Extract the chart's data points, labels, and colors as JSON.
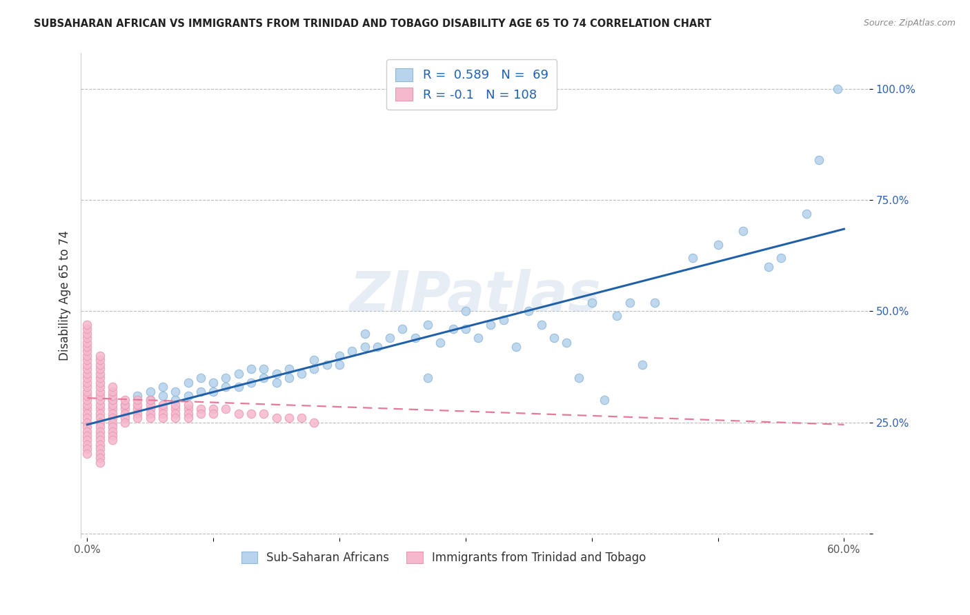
{
  "title": "SUBSAHARAN AFRICAN VS IMMIGRANTS FROM TRINIDAD AND TOBAGO DISABILITY AGE 65 TO 74 CORRELATION CHART",
  "source": "Source: ZipAtlas.com",
  "ylabel": "Disability Age 65 to 74",
  "xlim": [
    -0.005,
    0.62
  ],
  "ylim": [
    -0.01,
    1.08
  ],
  "xticks": [
    0.0,
    0.1,
    0.2,
    0.3,
    0.4,
    0.5,
    0.6
  ],
  "xticklabels": [
    "0.0%",
    "",
    "",
    "",
    "",
    "",
    "60.0%"
  ],
  "yticks": [
    0.0,
    0.25,
    0.5,
    0.75,
    1.0
  ],
  "yticklabels": [
    "",
    "25.0%",
    "50.0%",
    "75.0%",
    "100.0%"
  ],
  "blue_R": 0.589,
  "blue_N": 69,
  "pink_R": -0.1,
  "pink_N": 108,
  "blue_color": "#b8d4ec",
  "pink_color": "#f5b8cd",
  "blue_edge_color": "#90b8d8",
  "pink_edge_color": "#e898b4",
  "blue_line_color": "#2060a8",
  "pink_line_color": "#e87898",
  "watermark": "ZIPatlas",
  "legend_label_blue": "Sub-Saharan Africans",
  "legend_label_pink": "Immigrants from Trinidad and Tobago",
  "blue_scatter_x": [
    0.02,
    0.03,
    0.04,
    0.05,
    0.05,
    0.06,
    0.06,
    0.07,
    0.07,
    0.08,
    0.08,
    0.09,
    0.09,
    0.1,
    0.1,
    0.11,
    0.11,
    0.12,
    0.12,
    0.13,
    0.13,
    0.14,
    0.14,
    0.15,
    0.15,
    0.16,
    0.16,
    0.17,
    0.18,
    0.18,
    0.19,
    0.2,
    0.2,
    0.21,
    0.22,
    0.22,
    0.23,
    0.24,
    0.25,
    0.26,
    0.27,
    0.27,
    0.28,
    0.29,
    0.3,
    0.3,
    0.31,
    0.32,
    0.33,
    0.34,
    0.35,
    0.36,
    0.37,
    0.38,
    0.39,
    0.4,
    0.41,
    0.42,
    0.43,
    0.44,
    0.45,
    0.48,
    0.5,
    0.52,
    0.54,
    0.55,
    0.57,
    0.58,
    0.595
  ],
  "blue_scatter_y": [
    0.3,
    0.29,
    0.31,
    0.3,
    0.32,
    0.31,
    0.33,
    0.3,
    0.32,
    0.31,
    0.34,
    0.32,
    0.35,
    0.32,
    0.34,
    0.33,
    0.35,
    0.33,
    0.36,
    0.34,
    0.37,
    0.35,
    0.37,
    0.34,
    0.36,
    0.35,
    0.37,
    0.36,
    0.37,
    0.39,
    0.38,
    0.38,
    0.4,
    0.41,
    0.42,
    0.45,
    0.42,
    0.44,
    0.46,
    0.44,
    0.47,
    0.35,
    0.43,
    0.46,
    0.46,
    0.5,
    0.44,
    0.47,
    0.48,
    0.42,
    0.5,
    0.47,
    0.44,
    0.43,
    0.35,
    0.52,
    0.3,
    0.49,
    0.52,
    0.38,
    0.52,
    0.62,
    0.65,
    0.68,
    0.6,
    0.62,
    0.72,
    0.84,
    1.0
  ],
  "pink_scatter_x": [
    0.0,
    0.0,
    0.0,
    0.0,
    0.0,
    0.0,
    0.0,
    0.0,
    0.0,
    0.0,
    0.0,
    0.0,
    0.0,
    0.0,
    0.0,
    0.0,
    0.0,
    0.0,
    0.0,
    0.0,
    0.0,
    0.0,
    0.0,
    0.0,
    0.0,
    0.0,
    0.0,
    0.0,
    0.0,
    0.0,
    0.01,
    0.01,
    0.01,
    0.01,
    0.01,
    0.01,
    0.01,
    0.01,
    0.01,
    0.01,
    0.01,
    0.01,
    0.01,
    0.01,
    0.01,
    0.01,
    0.01,
    0.01,
    0.01,
    0.01,
    0.01,
    0.01,
    0.01,
    0.01,
    0.01,
    0.02,
    0.02,
    0.02,
    0.02,
    0.02,
    0.02,
    0.02,
    0.02,
    0.02,
    0.02,
    0.02,
    0.02,
    0.02,
    0.03,
    0.03,
    0.03,
    0.03,
    0.03,
    0.03,
    0.04,
    0.04,
    0.04,
    0.04,
    0.04,
    0.05,
    0.05,
    0.05,
    0.05,
    0.05,
    0.06,
    0.06,
    0.06,
    0.06,
    0.07,
    0.07,
    0.07,
    0.07,
    0.08,
    0.08,
    0.08,
    0.08,
    0.09,
    0.09,
    0.1,
    0.1,
    0.11,
    0.12,
    0.13,
    0.14,
    0.15,
    0.16,
    0.17,
    0.18
  ],
  "pink_scatter_y": [
    0.28,
    0.29,
    0.3,
    0.31,
    0.32,
    0.33,
    0.34,
    0.35,
    0.36,
    0.37,
    0.38,
    0.39,
    0.4,
    0.41,
    0.42,
    0.43,
    0.44,
    0.45,
    0.46,
    0.47,
    0.27,
    0.26,
    0.25,
    0.24,
    0.23,
    0.22,
    0.21,
    0.2,
    0.19,
    0.18,
    0.28,
    0.29,
    0.3,
    0.31,
    0.32,
    0.33,
    0.34,
    0.35,
    0.36,
    0.37,
    0.38,
    0.39,
    0.4,
    0.27,
    0.26,
    0.25,
    0.24,
    0.23,
    0.22,
    0.21,
    0.2,
    0.19,
    0.18,
    0.17,
    0.16,
    0.28,
    0.29,
    0.3,
    0.31,
    0.32,
    0.33,
    0.27,
    0.26,
    0.25,
    0.24,
    0.23,
    0.22,
    0.21,
    0.28,
    0.29,
    0.3,
    0.27,
    0.26,
    0.25,
    0.28,
    0.29,
    0.3,
    0.27,
    0.26,
    0.28,
    0.29,
    0.3,
    0.27,
    0.26,
    0.28,
    0.29,
    0.27,
    0.26,
    0.28,
    0.29,
    0.27,
    0.26,
    0.28,
    0.29,
    0.27,
    0.26,
    0.28,
    0.27,
    0.28,
    0.27,
    0.28,
    0.27,
    0.27,
    0.27,
    0.26,
    0.26,
    0.26,
    0.25
  ],
  "blue_line_x": [
    0.0,
    0.6
  ],
  "blue_line_y": [
    0.245,
    0.685
  ],
  "pink_line_x": [
    0.0,
    0.6
  ],
  "pink_line_y": [
    0.305,
    0.245
  ]
}
